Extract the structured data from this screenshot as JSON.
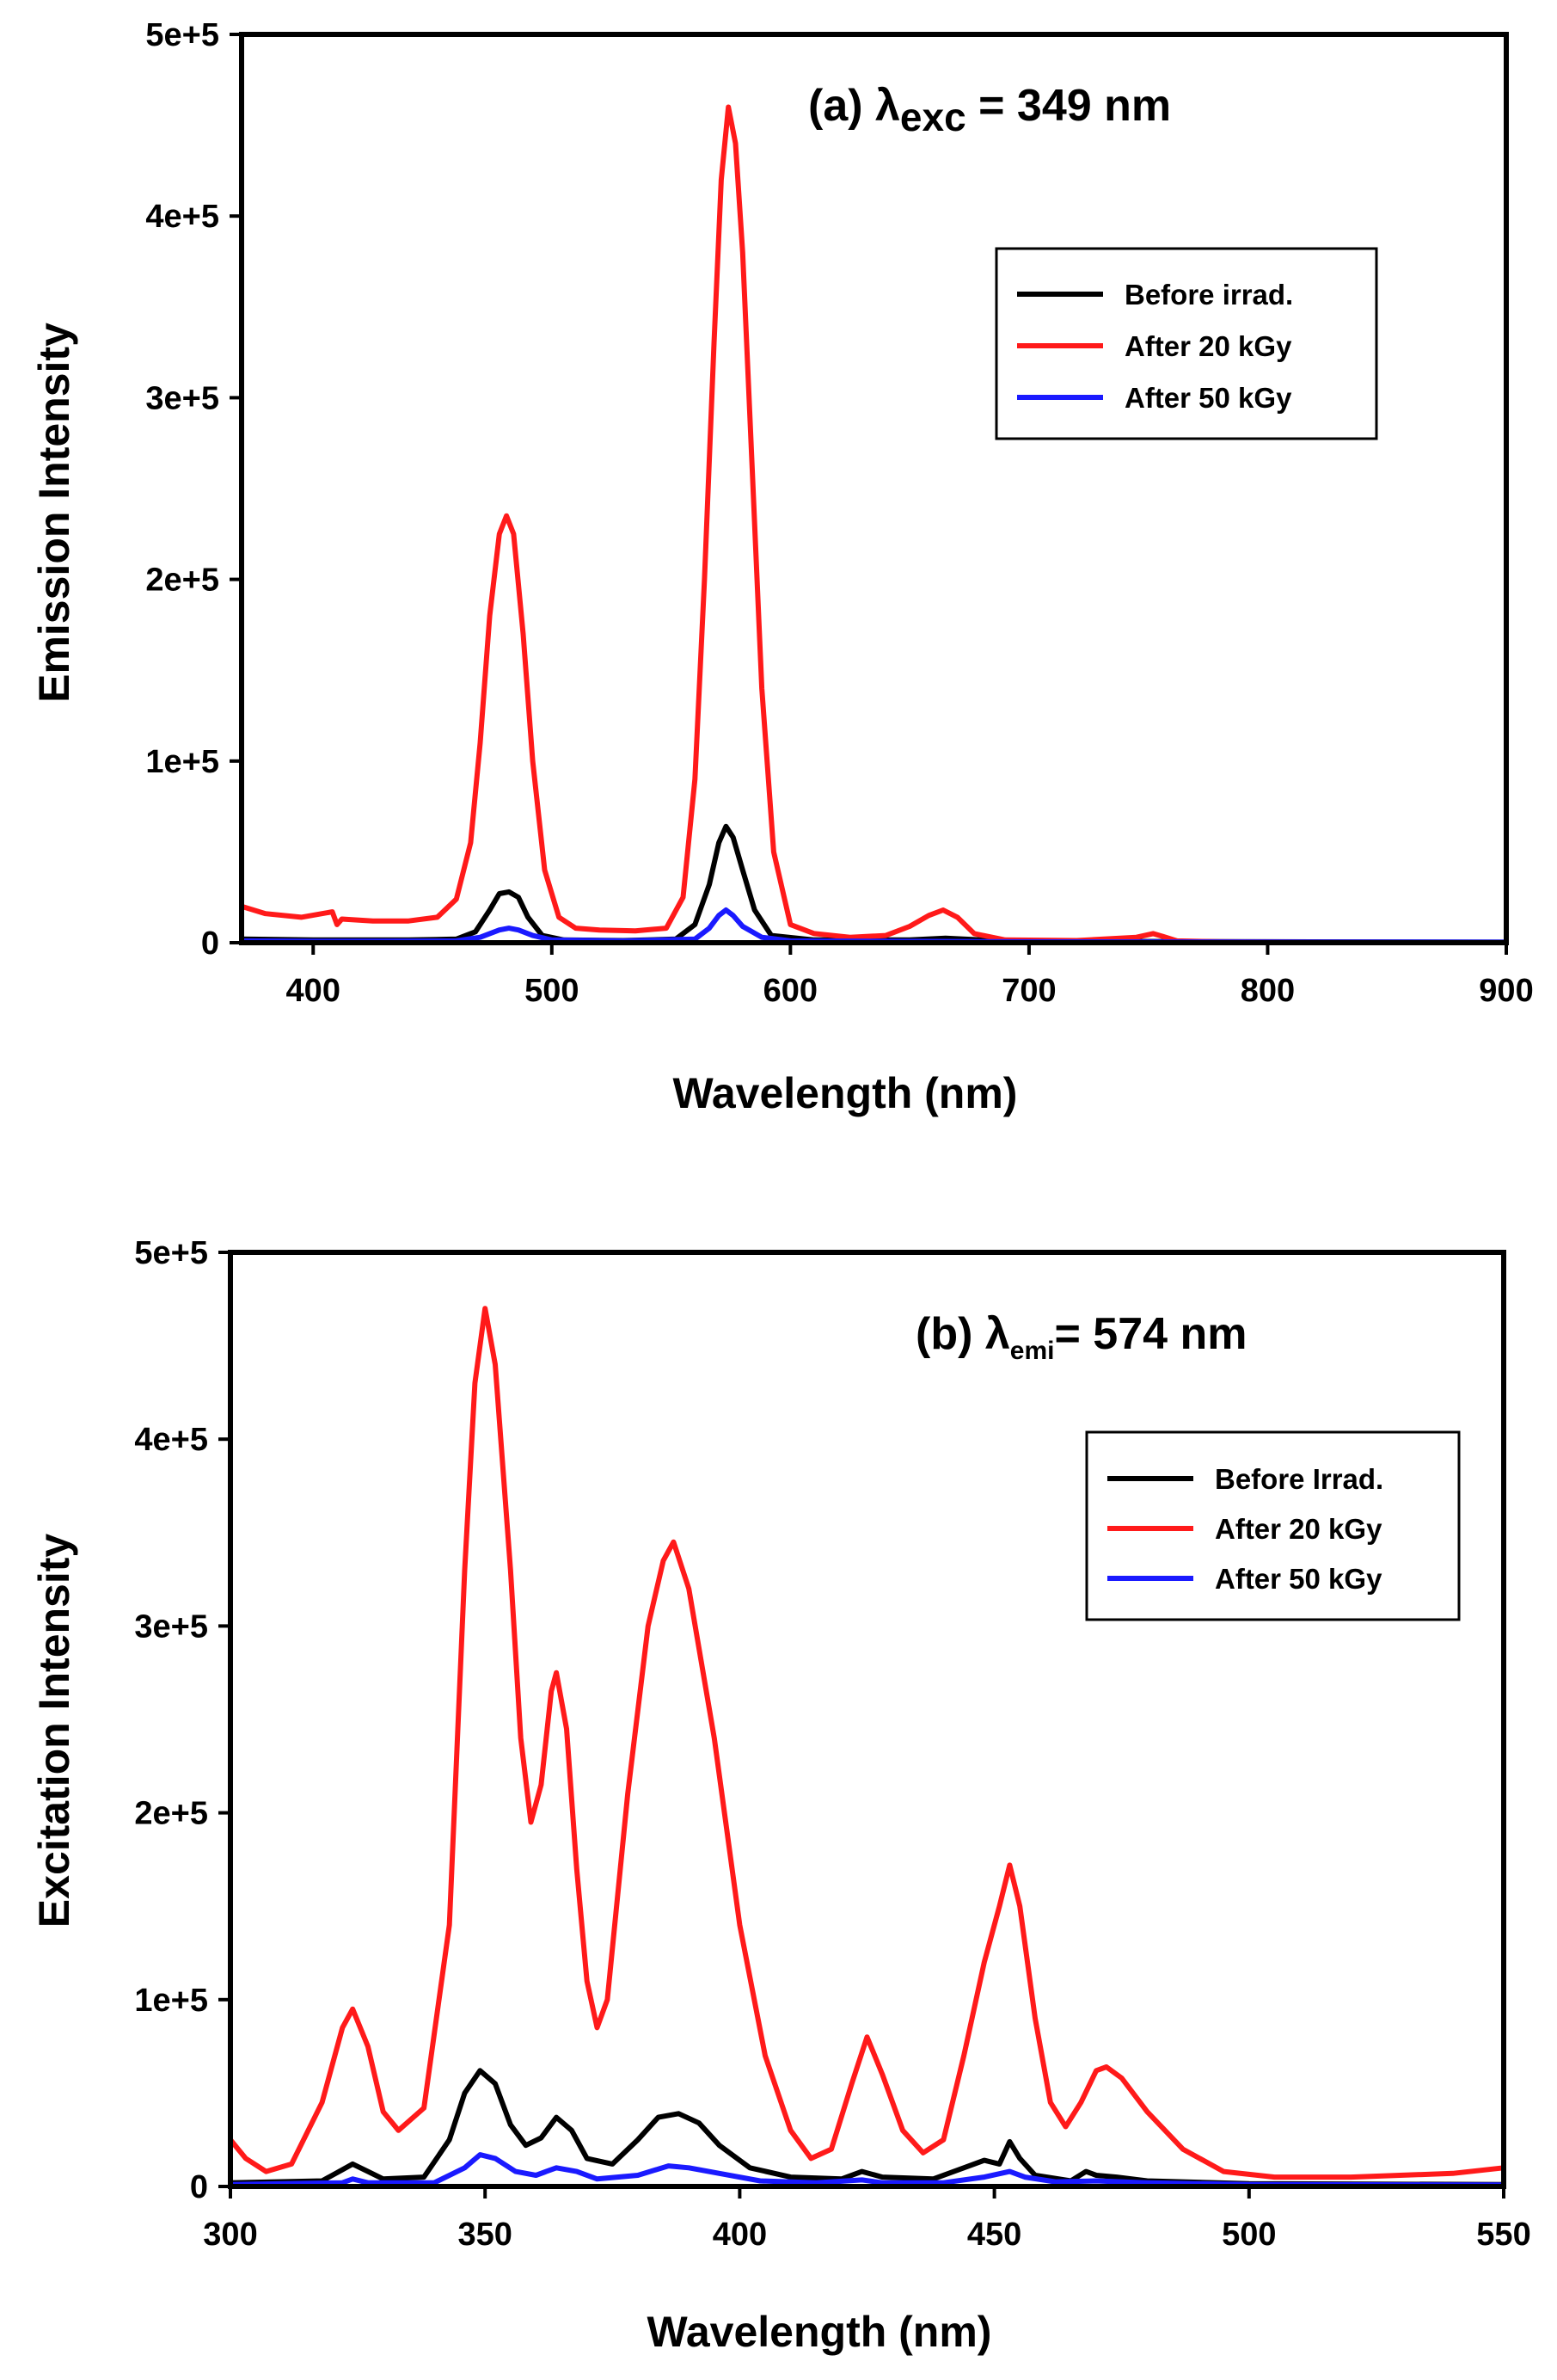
{
  "colors": {
    "before": "#000000",
    "after20": "#ff1a1a",
    "after50": "#1a1aff",
    "axis": "#000000"
  },
  "chart_data": [
    {
      "id": "panel-a",
      "type": "line",
      "annotation": {
        "prefix": "(a) ",
        "symbol": "λ",
        "subscript": "exc",
        "suffix": " = 349 nm"
      },
      "xlabel": "Wavelength (nm)",
      "ylabel": "Emission Intensity",
      "xlim": [
        370,
        900
      ],
      "ylim": [
        0,
        500000
      ],
      "xticks": [
        400,
        500,
        600,
        700,
        800,
        900
      ],
      "xtick_labels": [
        "400",
        "500",
        "600",
        "700",
        "800",
        "900"
      ],
      "yticks": [
        0,
        100000,
        200000,
        300000,
        400000,
        500000
      ],
      "ytick_labels": [
        "0",
        "1e+5",
        "2e+5",
        "3e+5",
        "4e+5",
        "5e+5"
      ],
      "legend": [
        "Before irrad.",
        "After 20 kGy",
        "After 50 kGy"
      ],
      "legend_position": "upper-right",
      "series": [
        {
          "name": "Before irrad.",
          "color_key": "before",
          "x": [
            370,
            400,
            440,
            460,
            468,
            474,
            478,
            482,
            486,
            490,
            496,
            505,
            530,
            552,
            560,
            566,
            570,
            573,
            576,
            580,
            585,
            592,
            610,
            650,
            665,
            680,
            720,
            800,
            900
          ],
          "y": [
            2000,
            1500,
            1500,
            2000,
            6000,
            18000,
            27000,
            28000,
            25000,
            14000,
            4000,
            1500,
            1200,
            2000,
            10000,
            32000,
            55000,
            64000,
            58000,
            40000,
            18000,
            4000,
            1500,
            1500,
            2500,
            1500,
            800,
            500,
            300
          ]
        },
        {
          "name": "After 20 kGy",
          "color_key": "after20",
          "x": [
            370,
            380,
            395,
            408,
            410,
            412,
            425,
            440,
            452,
            460,
            466,
            470,
            474,
            478,
            481,
            484,
            488,
            492,
            497,
            503,
            510,
            520,
            535,
            548,
            555,
            560,
            564,
            568,
            571,
            574,
            577,
            580,
            584,
            588,
            593,
            600,
            610,
            625,
            640,
            650,
            658,
            664,
            670,
            677,
            690,
            720,
            745,
            752,
            756,
            762,
            780,
            820,
            900
          ],
          "y": [
            20000,
            16000,
            14000,
            17000,
            10000,
            13000,
            12000,
            12000,
            14000,
            24000,
            55000,
            110000,
            180000,
            225000,
            235000,
            225000,
            170000,
            100000,
            40000,
            14000,
            8000,
            7000,
            6500,
            8000,
            25000,
            90000,
            200000,
            330000,
            420000,
            460000,
            440000,
            380000,
            260000,
            140000,
            50000,
            10000,
            5000,
            3000,
            4000,
            9000,
            15000,
            18000,
            14000,
            5000,
            1500,
            1200,
            3000,
            5000,
            3500,
            1000,
            500,
            300,
            200
          ]
        },
        {
          "name": "After 50 kGy",
          "color_key": "after50",
          "x": [
            370,
            400,
            460,
            470,
            478,
            482,
            486,
            492,
            500,
            530,
            560,
            566,
            570,
            573,
            576,
            580,
            588,
            600,
            640,
            700,
            900
          ],
          "y": [
            1000,
            800,
            1000,
            3000,
            7000,
            8000,
            7000,
            4000,
            1500,
            1000,
            2000,
            8000,
            15000,
            18000,
            15000,
            9000,
            3000,
            1000,
            800,
            500,
            300
          ]
        }
      ]
    },
    {
      "id": "panel-b",
      "type": "line",
      "annotation": {
        "prefix": "(b) ",
        "symbol": "λ",
        "subscript": "emi",
        "suffix": "= 574 nm"
      },
      "xlabel": "Wavelength (nm)",
      "ylabel": "Excitation Intensity",
      "xlim": [
        300,
        550
      ],
      "ylim": [
        0,
        500000
      ],
      "xticks": [
        300,
        350,
        400,
        450,
        500,
        550
      ],
      "xtick_labels": [
        "300",
        "350",
        "400",
        "450",
        "500",
        "550"
      ],
      "yticks": [
        0,
        100000,
        200000,
        300000,
        400000,
        500000
      ],
      "ytick_labels": [
        "0",
        "1e+5",
        "2e+5",
        "3e+5",
        "4e+5",
        "5e+5"
      ],
      "legend": [
        "Before Irrad.",
        "After 20 kGy",
        "After 50 kGy"
      ],
      "legend_position": "upper-right",
      "series": [
        {
          "name": "Before Irrad.",
          "color_key": "before",
          "x": [
            300,
            318,
            322,
            324,
            327,
            330,
            338,
            343,
            346,
            349,
            352,
            355,
            358,
            361,
            364,
            367,
            370,
            375,
            380,
            384,
            388,
            392,
            396,
            402,
            410,
            420,
            424,
            428,
            438,
            444,
            448,
            451,
            453,
            455,
            458,
            465,
            468,
            470,
            474,
            480,
            500,
            550
          ],
          "y": [
            2000,
            3000,
            9000,
            12000,
            8000,
            4000,
            5000,
            25000,
            50000,
            62000,
            55000,
            33000,
            22000,
            26000,
            37000,
            30000,
            15000,
            12000,
            25000,
            37000,
            39000,
            34000,
            22000,
            10000,
            5000,
            4000,
            8000,
            5000,
            4000,
            10000,
            14000,
            12000,
            24000,
            15000,
            6000,
            3000,
            8000,
            6000,
            5000,
            3000,
            1500,
            1000
          ]
        },
        {
          "name": "After 20 kGy",
          "color_key": "after20",
          "x": [
            300,
            303,
            307,
            312,
            318,
            322,
            324,
            327,
            330,
            333,
            338,
            343,
            346,
            348,
            350,
            352,
            355,
            357,
            359,
            361,
            363,
            364,
            366,
            368,
            370,
            372,
            374,
            378,
            382,
            385,
            387,
            390,
            395,
            400,
            405,
            410,
            414,
            418,
            422,
            425,
            428,
            432,
            436,
            440,
            444,
            448,
            451,
            453,
            455,
            458,
            461,
            464,
            467,
            470,
            472,
            475,
            480,
            487,
            495,
            505,
            520,
            540,
            550
          ],
          "y": [
            25000,
            15000,
            8000,
            12000,
            45000,
            85000,
            95000,
            75000,
            40000,
            30000,
            42000,
            140000,
            330000,
            430000,
            470000,
            440000,
            330000,
            240000,
            195000,
            215000,
            265000,
            275000,
            245000,
            170000,
            110000,
            85000,
            100000,
            210000,
            300000,
            335000,
            345000,
            320000,
            240000,
            140000,
            70000,
            30000,
            15000,
            20000,
            55000,
            80000,
            60000,
            30000,
            18000,
            25000,
            70000,
            120000,
            150000,
            172000,
            150000,
            90000,
            45000,
            32000,
            45000,
            62000,
            64000,
            58000,
            40000,
            20000,
            8000,
            5000,
            5000,
            7000,
            10000
          ]
        },
        {
          "name": "After 50 kGy",
          "color_key": "after50",
          "x": [
            300,
            322,
            324,
            327,
            340,
            346,
            349,
            352,
            356,
            360,
            364,
            368,
            372,
            380,
            386,
            390,
            396,
            404,
            415,
            424,
            428,
            440,
            448,
            453,
            456,
            462,
            470,
            480,
            500,
            550
          ],
          "y": [
            1000,
            2000,
            4000,
            2000,
            2000,
            10000,
            17000,
            15000,
            8000,
            6000,
            10000,
            8000,
            4000,
            6000,
            11000,
            10000,
            7000,
            3000,
            2000,
            3500,
            2000,
            2000,
            5000,
            8000,
            5000,
            2500,
            3000,
            2000,
            1000,
            800
          ]
        }
      ]
    }
  ]
}
